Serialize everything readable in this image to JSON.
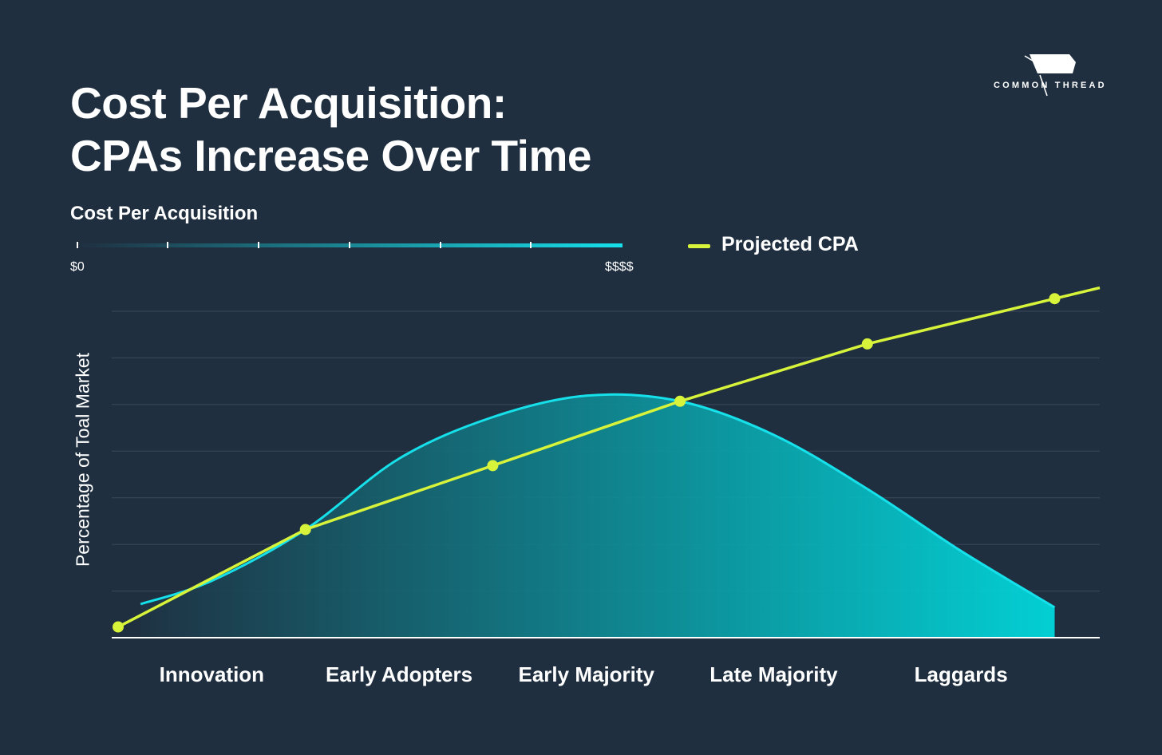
{
  "title": {
    "line1": "Cost Per Acquisition:",
    "line2": "CPAs Increase Over Time"
  },
  "brand": {
    "name": "COMMON THREAD",
    "icon": "flag-icon"
  },
  "colors": {
    "background": "#1f2f40",
    "cpa_line": "#d8f43a",
    "curve_stroke": "#16e0ea",
    "gradient_start": "#1f2f40",
    "gradient_end": "#00dde0",
    "grid": "#3a4a5c",
    "text": "#ffffff"
  },
  "scale": {
    "title": "Cost Per Acquisition",
    "min_label": "$0",
    "max_label": "$$$$"
  },
  "legend": {
    "label": "Projected CPA"
  },
  "chart_data": {
    "type": "line",
    "ylabel": "Percentage of Toal Market",
    "xlabel": "",
    "categories": [
      "Innovation",
      "Early Adopters",
      "Early Majority",
      "Late Majority",
      "Laggards"
    ],
    "ylim": [
      0,
      7
    ],
    "grid": true,
    "series": [
      {
        "name": "Projected CPA",
        "x": [
          0,
          1,
          2,
          3,
          4,
          5
        ],
        "values": [
          0.23,
          2.32,
          3.69,
          5.07,
          6.3,
          7.27
        ]
      },
      {
        "name": "",
        "type": "area",
        "x": [
          0.12,
          0.5,
          1.0,
          1.5,
          2.0,
          2.5,
          3.0,
          3.5,
          4.0,
          4.5,
          5.0
        ],
        "values": [
          0.72,
          1.22,
          2.32,
          3.84,
          4.73,
          5.19,
          5.07,
          4.35,
          3.19,
          1.86,
          0.65
        ]
      }
    ],
    "legend": "top-right"
  }
}
